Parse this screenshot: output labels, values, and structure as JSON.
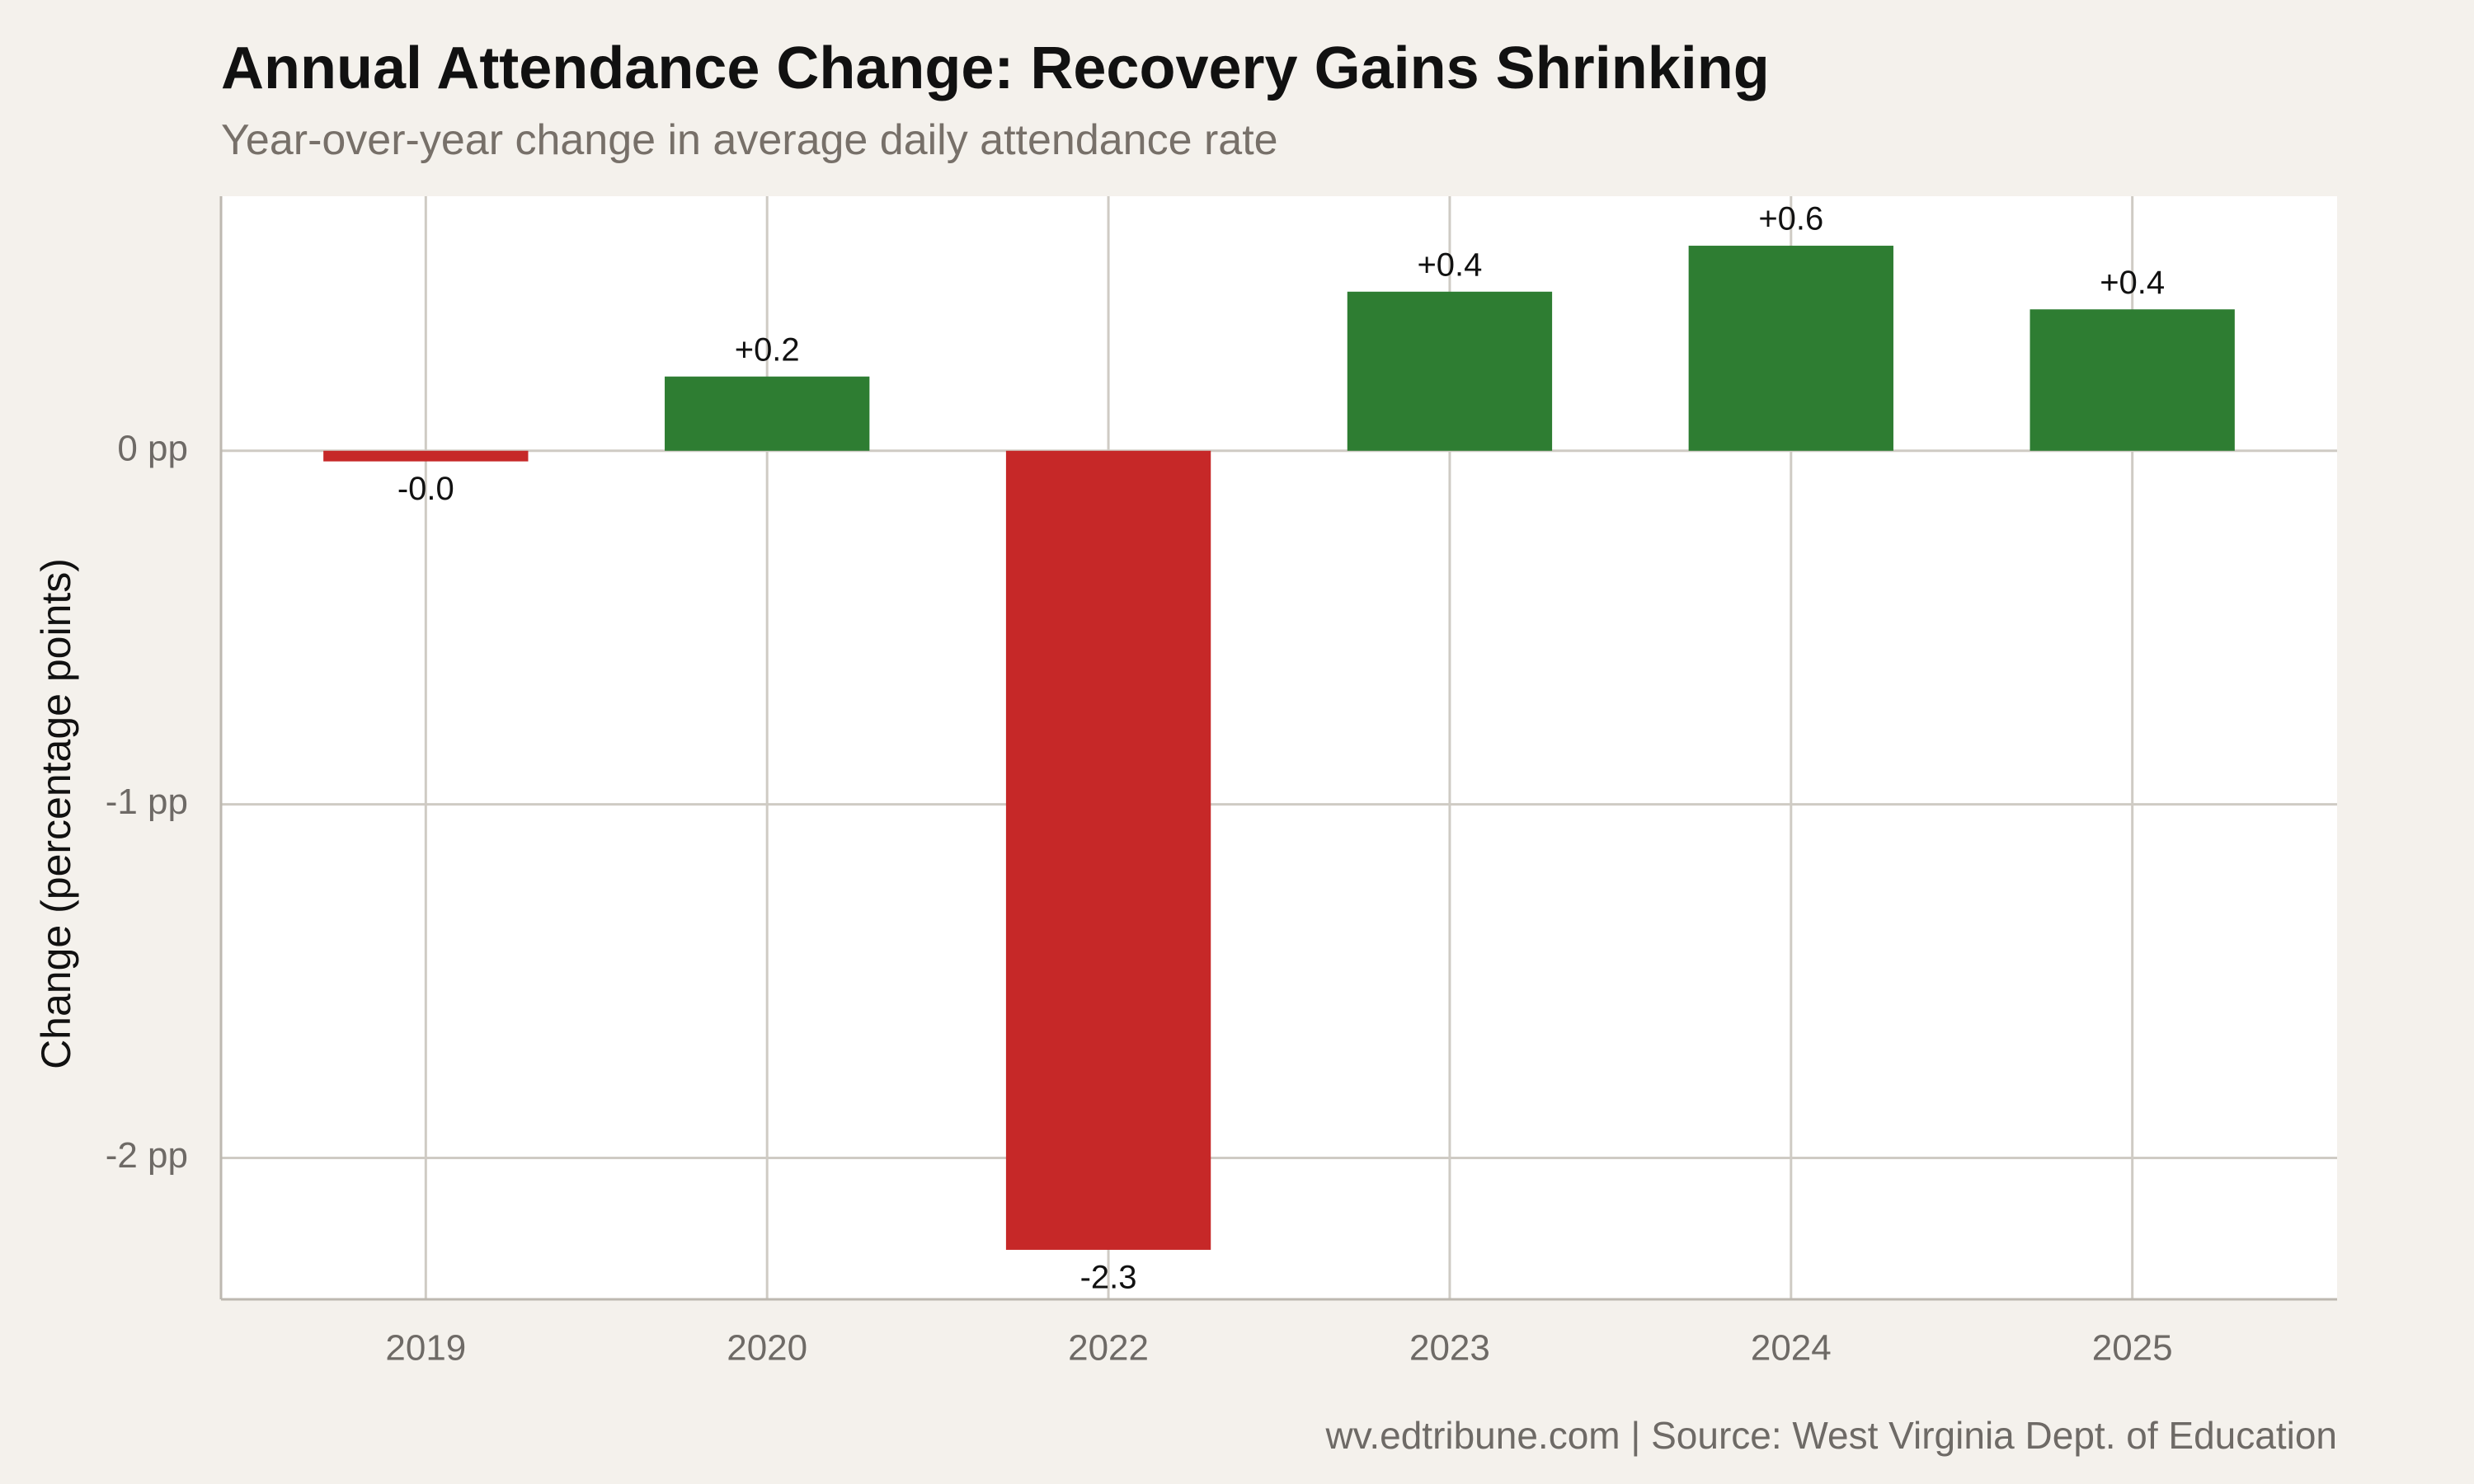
{
  "chart_data": {
    "type": "bar",
    "title": "Annual Attendance Change: Recovery Gains Shrinking",
    "subtitle": "Year-over-year change in average daily attendance rate",
    "ylabel": "Change (percentage points)",
    "xlabel": "",
    "caption": "wv.edtribune.com | Source: West Virginia Dept. of Education",
    "categories": [
      "2019",
      "2020",
      "2022",
      "2023",
      "2024",
      "2025"
    ],
    "values": [
      -0.03,
      0.21,
      -2.26,
      0.45,
      0.58,
      0.4
    ],
    "value_labels": [
      "-0.0",
      "+0.2",
      "-2.3",
      "+0.4",
      "+0.6",
      "+0.4"
    ],
    "ylim": [
      -2.4,
      0.72
    ],
    "yticks": [
      0,
      -1,
      -2
    ],
    "ytick_labels": [
      "0 pp",
      "-1 pp",
      "-2 pp"
    ],
    "grid": true,
    "legend": "none",
    "colors": {
      "positive": "#2e7d32",
      "negative": "#c62828",
      "panel": "#ffffff",
      "background": "#f4f1ec",
      "grid": "#cfcbc4"
    }
  }
}
